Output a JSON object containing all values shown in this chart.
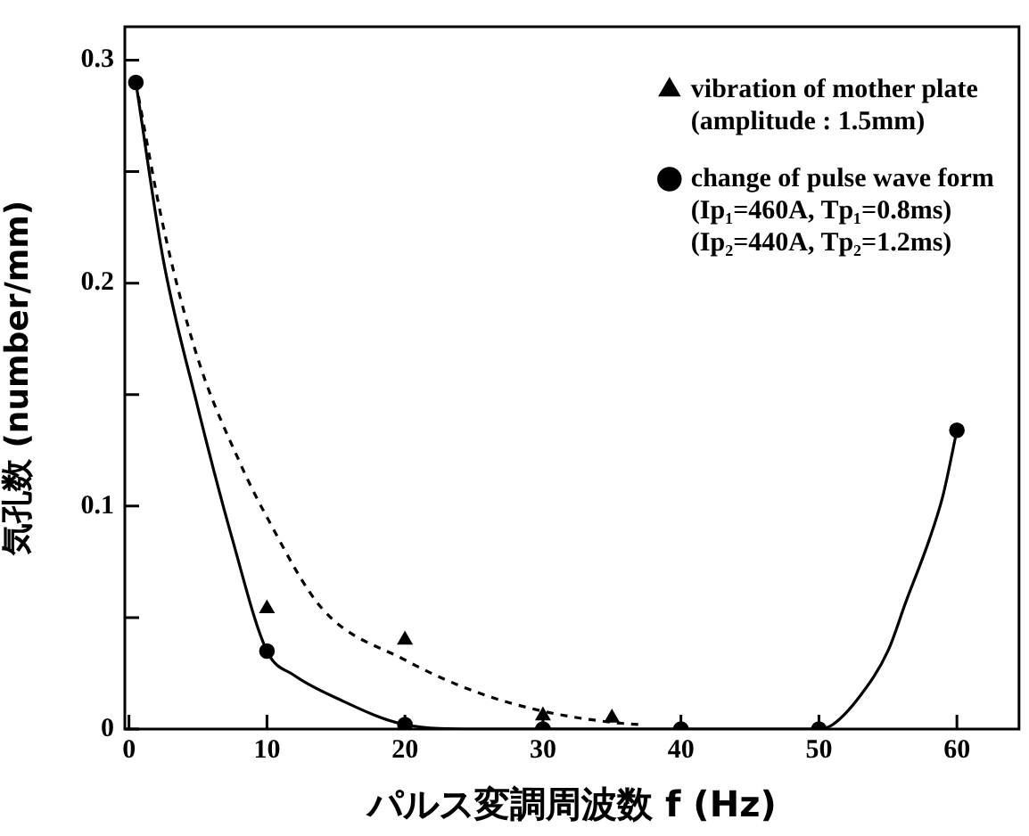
{
  "chart_data": {
    "type": "scatter",
    "xlabel": "パルス変調周波数 f (Hz)",
    "ylabel": "気孔数 (number/mm)",
    "xlim": [
      -0.3,
      64.5
    ],
    "ylim": [
      0,
      0.315
    ],
    "xticks": [
      0,
      10,
      20,
      30,
      40,
      50,
      60
    ],
    "yticks": [
      0,
      {
        "value": 0.05,
        "label": null
      },
      0.1,
      {
        "value": 0.15,
        "label": null
      },
      0.2,
      {
        "value": 0.25,
        "label": null
      },
      0.3
    ],
    "grid": false,
    "legend": "top right",
    "series": [
      {
        "type": "scatter",
        "name": "vibration of mother plate\n(amplitude : 1.5mm)",
        "marker": "triangle",
        "color": "#000000",
        "x": [
          10,
          20,
          30,
          35
        ],
        "values": [
          0.054,
          0.04,
          0.006,
          0.005
        ]
      },
      {
        "type": "line",
        "line_style": "dashed",
        "marker": "none",
        "color": "#000000",
        "x": [
          0.5,
          2.5,
          5,
          8,
          10,
          14,
          20,
          25,
          30,
          35,
          37
        ],
        "values": [
          0.29,
          0.225,
          0.166,
          0.12,
          0.095,
          0.054,
          0.031,
          0.017,
          0.008,
          0.003,
          0.002
        ]
      },
      {
        "type": "scatter",
        "name": "change of pulse wave form\n(Ip₁=460A, Tp₁=0.8ms)\n(Ip₂=440A, Tp₂=1.2ms)",
        "marker": "circle",
        "color": "#000000",
        "x": [
          0.5,
          10,
          20,
          30,
          40,
          50,
          60
        ],
        "values": [
          0.29,
          0.035,
          0.002,
          0,
          0,
          0,
          0.134
        ]
      },
      {
        "type": "line",
        "line_style": "solid",
        "marker": "none",
        "color": "#000000",
        "x": [
          0.5,
          2.5,
          5,
          7.5,
          10,
          12,
          15,
          20,
          25,
          30,
          40,
          50,
          51,
          53,
          55,
          56.3,
          58,
          59,
          60
        ],
        "values": [
          0.29,
          0.21,
          0.144,
          0.085,
          0.035,
          0.024,
          0.014,
          0.002,
          0,
          0,
          0,
          0,
          0.002,
          0.015,
          0.035,
          0.057,
          0.085,
          0.105,
          0.134
        ]
      }
    ]
  }
}
